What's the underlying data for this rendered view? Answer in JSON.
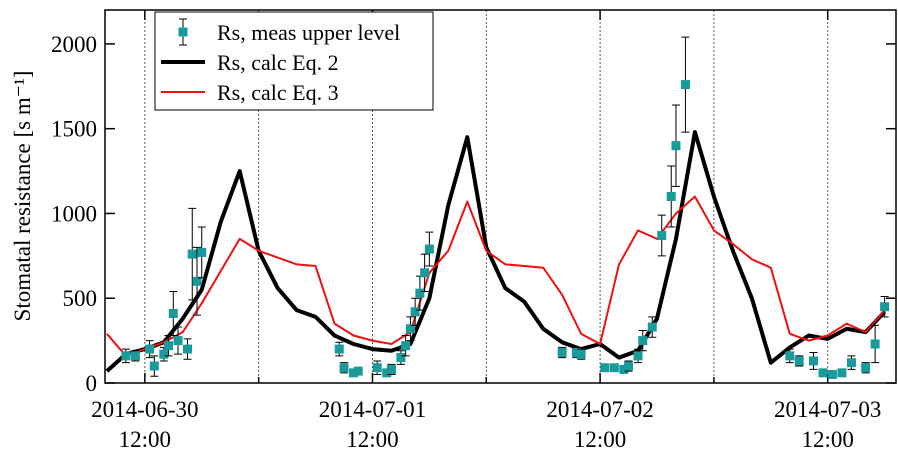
{
  "chart_data": {
    "type": "line",
    "y_label": "Stomatal resistance [s m⁻¹]",
    "xlim": [
      "2014-06-30T07:48",
      "2014-07-03T19:12"
    ],
    "xticks": [
      {
        "value": "2014-06-30T12:00",
        "label": [
          "2014-06-30",
          "12:00"
        ]
      },
      {
        "value": "2014-07-01T12:00",
        "label": [
          "2014-07-01",
          "12:00"
        ]
      },
      {
        "value": "2014-07-02T12:00",
        "label": [
          "2014-07-02",
          "12:00"
        ]
      },
      {
        "value": "2014-07-03T12:00",
        "label": [
          "2014-07-03",
          "12:00"
        ]
      }
    ],
    "x_minor_ticks": [
      "2014-07-01T00:00",
      "2014-07-02T00:00",
      "2014-07-03T00:00"
    ],
    "ylim": [
      0,
      2200
    ],
    "yticks": [
      0,
      500,
      1000,
      1500,
      2000
    ],
    "grid": true,
    "legend": "upper left",
    "x": [
      "2014-06-30T08:00",
      "2014-06-30T10:00",
      "2014-06-30T12:00",
      "2014-06-30T14:00",
      "2014-06-30T16:00",
      "2014-06-30T18:00",
      "2014-06-30T20:00",
      "2014-06-30T22:00",
      "2014-07-01T00:00",
      "2014-07-01T02:00",
      "2014-07-01T04:00",
      "2014-07-01T06:00",
      "2014-07-01T08:00",
      "2014-07-01T10:00",
      "2014-07-01T12:00",
      "2014-07-01T14:00",
      "2014-07-01T16:00",
      "2014-07-01T18:00",
      "2014-07-01T20:00",
      "2014-07-01T22:00",
      "2014-07-02T00:00",
      "2014-07-02T02:00",
      "2014-07-02T04:00",
      "2014-07-02T06:00",
      "2014-07-02T08:00",
      "2014-07-02T10:00",
      "2014-07-02T12:00",
      "2014-07-02T14:00",
      "2014-07-02T16:00",
      "2014-07-02T18:00",
      "2014-07-02T20:00",
      "2014-07-02T22:00",
      "2014-07-03T00:00",
      "2014-07-03T02:00",
      "2014-07-03T04:00",
      "2014-07-03T06:00",
      "2014-07-03T08:00",
      "2014-07-03T10:00",
      "2014-07-03T12:00",
      "2014-07-03T14:00",
      "2014-07-03T16:00",
      "2014-07-03T18:00"
    ],
    "series": [
      {
        "name": "Rs, meas upper level",
        "color": "#1a9a9a",
        "kind": "points",
        "x": [
          "2014-06-30T10:00",
          "2014-06-30T11:00",
          "2014-06-30T12:30",
          "2014-06-30T13:00",
          "2014-06-30T14:00",
          "2014-06-30T14:30",
          "2014-06-30T15:00",
          "2014-06-30T15:30",
          "2014-06-30T16:30",
          "2014-06-30T17:00",
          "2014-06-30T17:30",
          "2014-06-30T18:00",
          "2014-07-01T08:30",
          "2014-07-01T09:00",
          "2014-07-01T10:00",
          "2014-07-01T10:30",
          "2014-07-01T12:30",
          "2014-07-01T13:30",
          "2014-07-01T14:00",
          "2014-07-01T15:00",
          "2014-07-01T15:30",
          "2014-07-01T16:00",
          "2014-07-01T16:30",
          "2014-07-01T17:00",
          "2014-07-01T17:30",
          "2014-07-01T18:00",
          "2014-07-02T08:00",
          "2014-07-02T09:30",
          "2014-07-02T10:00",
          "2014-07-02T12:30",
          "2014-07-02T13:30",
          "2014-07-02T14:30",
          "2014-07-02T15:00",
          "2014-07-02T16:00",
          "2014-07-02T16:30",
          "2014-07-02T17:30",
          "2014-07-02T18:30",
          "2014-07-02T19:30",
          "2014-07-02T20:00",
          "2014-07-02T21:00",
          "2014-07-03T08:00",
          "2014-07-03T09:00",
          "2014-07-03T10:30",
          "2014-07-03T11:30",
          "2014-07-03T12:30",
          "2014-07-03T13:30",
          "2014-07-03T14:30",
          "2014-07-03T16:00",
          "2014-07-03T17:00",
          "2014-07-03T18:00"
        ],
        "values": [
          160,
          160,
          200,
          100,
          170,
          220,
          410,
          250,
          200,
          760,
          600,
          770,
          200,
          90,
          60,
          70,
          90,
          60,
          80,
          150,
          220,
          320,
          420,
          530,
          650,
          790,
          180,
          180,
          170,
          90,
          90,
          80,
          100,
          160,
          250,
          330,
          870,
          1100,
          1400,
          1760,
          160,
          130,
          130,
          60,
          50,
          60,
          120,
          90,
          230,
          450
        ],
        "errors": [
          40,
          30,
          50,
          60,
          40,
          60,
          130,
          80,
          60,
          270,
          200,
          150,
          40,
          30,
          20,
          20,
          40,
          20,
          30,
          40,
          60,
          70,
          80,
          100,
          110,
          100,
          30,
          30,
          30,
          20,
          20,
          20,
          30,
          40,
          60,
          60,
          120,
          180,
          240,
          280,
          40,
          30,
          50,
          20,
          20,
          20,
          40,
          30,
          110,
          60
        ]
      },
      {
        "name": "Rs, calc Eq. 2",
        "color": "#000000",
        "kind": "line",
        "width": 4,
        "values": [
          70,
          170,
          200,
          240,
          380,
          550,
          950,
          1250,
          780,
          560,
          430,
          390,
          280,
          230,
          200,
          190,
          230,
          500,
          1050,
          1450,
          800,
          560,
          480,
          320,
          240,
          200,
          230,
          150,
          190,
          380,
          850,
          1480,
          1100,
          780,
          500,
          120,
          210,
          280,
          260,
          320,
          300,
          420
        ]
      },
      {
        "name": "Rs, calc Eq. 3",
        "color": "#ee1111",
        "kind": "line",
        "width": 2,
        "values": [
          290,
          160,
          200,
          240,
          300,
          470,
          660,
          850,
          780,
          740,
          700,
          690,
          350,
          280,
          250,
          230,
          300,
          650,
          780,
          1070,
          780,
          700,
          690,
          680,
          520,
          290,
          230,
          700,
          900,
          850,
          1000,
          1100,
          900,
          820,
          730,
          680,
          290,
          250,
          280,
          350,
          300,
          430
        ]
      }
    ]
  }
}
